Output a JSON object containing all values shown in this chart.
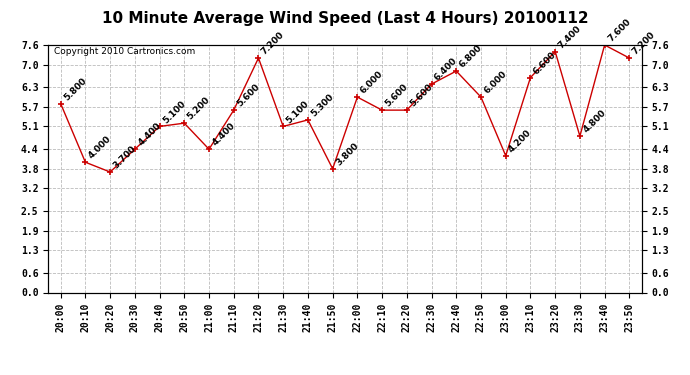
{
  "title": "10 Minute Average Wind Speed (Last 4 Hours) 20100112",
  "copyright": "Copyright 2010 Cartronics.com",
  "x_labels": [
    "20:00",
    "20:10",
    "20:20",
    "20:30",
    "20:40",
    "20:50",
    "21:00",
    "21:10",
    "21:20",
    "21:30",
    "21:40",
    "21:50",
    "22:00",
    "22:10",
    "22:20",
    "22:30",
    "22:40",
    "22:50",
    "23:00",
    "23:10",
    "23:20",
    "23:30",
    "23:40",
    "23:50"
  ],
  "y_values": [
    5.8,
    4.0,
    3.7,
    4.4,
    5.1,
    5.2,
    4.4,
    5.6,
    7.2,
    5.1,
    5.3,
    3.8,
    6.0,
    5.6,
    5.6,
    6.4,
    6.8,
    6.0,
    4.2,
    6.6,
    7.4,
    4.8,
    7.6,
    7.2
  ],
  "point_labels": [
    "5.800",
    "4.000",
    "3.700",
    "4.400",
    "5.100",
    "5.200",
    "4.400",
    "5.600",
    "7.200",
    "5.100",
    "5.300",
    "3.800",
    "6.000",
    "5.600",
    "5.600",
    "6.400",
    "6.800",
    "6.000",
    "4.200",
    "6.600",
    "7.400",
    "4.800",
    "7.600",
    "7.200"
  ],
  "line_color": "#cc0000",
  "marker_color": "#cc0000",
  "bg_color": "#ffffff",
  "plot_bg_color": "#ffffff",
  "grid_color": "#bbbbbb",
  "y_ticks": [
    0.0,
    0.6,
    1.3,
    1.9,
    2.5,
    3.2,
    3.8,
    4.4,
    5.1,
    5.7,
    6.3,
    7.0,
    7.6
  ],
  "ylim": [
    0.0,
    7.6
  ],
  "title_fontsize": 11,
  "copyright_fontsize": 6.5,
  "label_fontsize": 6.5,
  "tick_fontsize": 7
}
